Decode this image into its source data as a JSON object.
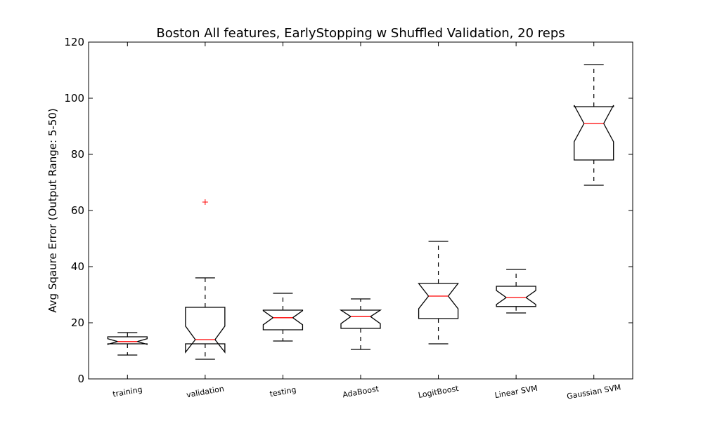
{
  "chart_data": {
    "type": "boxplot",
    "title": "Boston All features, EarlyStopping w Shuffled Validation, 20 reps",
    "xlabel": "",
    "ylabel": "Avg Sqaure Error (Output Range: 5-50)",
    "ylim": [
      0,
      120
    ],
    "yticks": [
      0,
      20,
      40,
      60,
      80,
      100,
      120
    ],
    "ytick_labels": [
      "0",
      "20",
      "40",
      "60",
      "80",
      "100",
      "120"
    ],
    "grid": false,
    "notched": true,
    "colors": {
      "box": "#000000",
      "median": "#ff0000",
      "outlier": "#ff0000",
      "whisker": "#000000"
    },
    "categories": [
      "training",
      "validation",
      "testing",
      "AdaBoost",
      "LogitBoost",
      "Linear SVM",
      "Gaussian SVM"
    ],
    "boxes": [
      {
        "label": "training",
        "whisker_low": 8.5,
        "q1": 12.5,
        "median": 13.3,
        "q3": 15,
        "whisker_high": 16.5,
        "notch_low": 12.3,
        "notch_high": 14.3,
        "outliers": []
      },
      {
        "label": "validation",
        "whisker_low": 7,
        "q1": 12.5,
        "median": 14,
        "q3": 25.5,
        "whisker_high": 36,
        "notch_low": 9.5,
        "notch_high": 18.8,
        "outliers": [
          63
        ]
      },
      {
        "label": "testing",
        "whisker_low": 13.5,
        "q1": 17.5,
        "median": 21.8,
        "q3": 24.5,
        "whisker_high": 30.5,
        "notch_low": 19.3,
        "notch_high": 24.3,
        "outliers": []
      },
      {
        "label": "AdaBoost",
        "whisker_low": 10.5,
        "q1": 18,
        "median": 22.2,
        "q3": 24.5,
        "whisker_high": 28.5,
        "notch_low": 19.7,
        "notch_high": 24.5,
        "outliers": []
      },
      {
        "label": "LogitBoost",
        "whisker_low": 12.5,
        "q1": 21.5,
        "median": 29.5,
        "q3": 34,
        "whisker_high": 49,
        "notch_low": 25,
        "notch_high": 34,
        "outliers": []
      },
      {
        "label": "Linear SVM",
        "whisker_low": 23.5,
        "q1": 25.8,
        "median": 29,
        "q3": 33,
        "whisker_high": 39,
        "notch_low": 26.5,
        "notch_high": 31.5,
        "outliers": []
      },
      {
        "label": "Gaussian SVM",
        "whisker_low": 69,
        "q1": 78,
        "median": 91,
        "q3": 97,
        "whisker_high": 112,
        "notch_low": 84.5,
        "notch_high": 97.5,
        "outliers": []
      }
    ]
  }
}
